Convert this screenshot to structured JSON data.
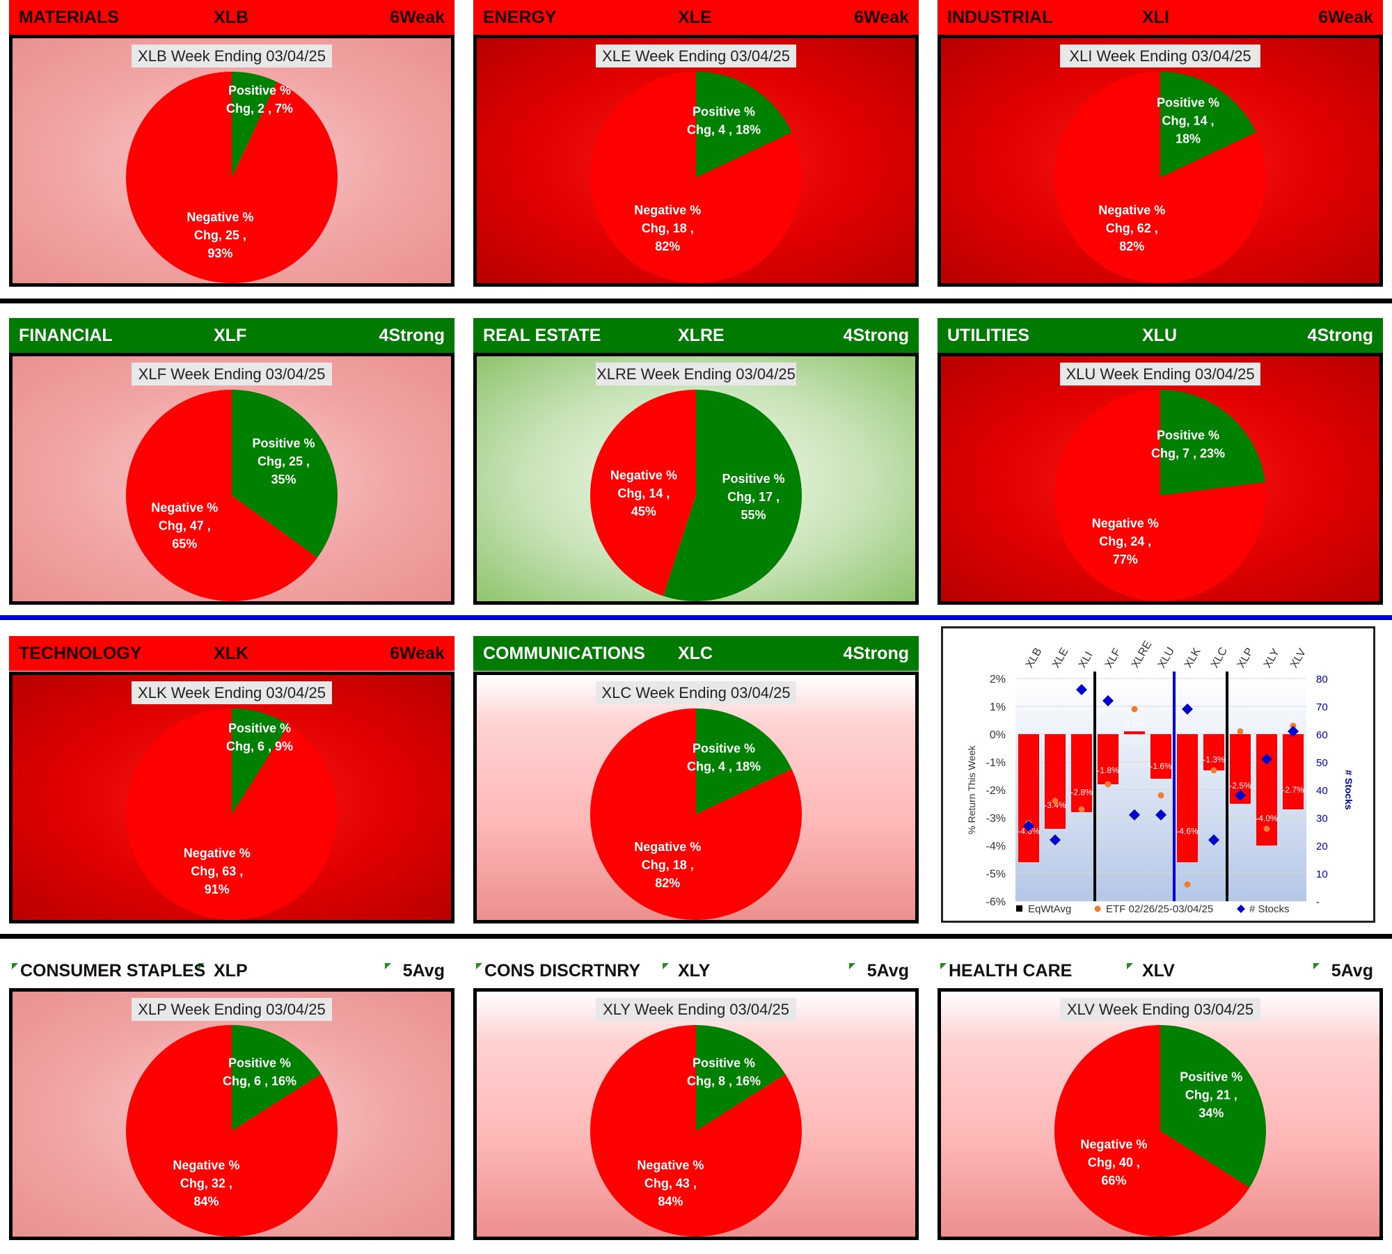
{
  "sectors": [
    {
      "name": "MATERIALS",
      "ticker": "XLB",
      "status": "6Weak",
      "header_style": "red",
      "bg": "lightred",
      "title": "XLB Week Ending 03/04/25",
      "pos_label": "Positive %",
      "pos_chg": "Chg,  2 , 7%",
      "neg_label": "Negative %",
      "neg_chg": "Chg,  25 ,",
      "neg_pct": "93%",
      "pos_pct": "",
      "pos_share": 0.07
    },
    {
      "name": "ENERGY",
      "ticker": "XLE",
      "status": "6Weak",
      "header_style": "red",
      "bg": "darkred",
      "title": "XLE Week Ending 03/04/25",
      "pos_label": "Positive %",
      "pos_chg": "Chg,  4 , 18%",
      "pos_pct": "",
      "neg_label": "Negative %",
      "neg_chg": "Chg,  18 ,",
      "neg_pct": "82%",
      "pos_share": 0.18
    },
    {
      "name": "INDUSTRIAL",
      "ticker": "XLI",
      "status": "6Weak",
      "header_style": "red",
      "bg": "darkred",
      "title": "XLI Week Ending 03/04/25",
      "pos_label": "Positive %",
      "pos_chg": "Chg,  14 ,",
      "pos_pct": "18%",
      "neg_label": "Negative %",
      "neg_chg": "Chg,  62 ,",
      "neg_pct": "82%",
      "pos_share": 0.18
    },
    {
      "name": "FINANCIAL",
      "ticker": "XLF",
      "status": "4Strong",
      "header_style": "green",
      "bg": "lightred",
      "title": "XLF Week Ending 03/04/25",
      "pos_label": "Positive %",
      "pos_chg": "Chg,  25 ,",
      "pos_pct": "35%",
      "neg_label": "Negative %",
      "neg_chg": "Chg,  47 ,",
      "neg_pct": "65%",
      "pos_share": 0.35
    },
    {
      "name": "REAL ESTATE",
      "ticker": "XLRE",
      "status": "4Strong",
      "header_style": "green",
      "bg": "green",
      "title": "XLRE Week Ending 03/04/25",
      "pos_label": "Positive %",
      "pos_chg": "Chg,  17 ,",
      "pos_pct": "55%",
      "neg_label": "Negative %",
      "neg_chg": "Chg,  14 ,",
      "neg_pct": "45%",
      "pos_share": 0.55
    },
    {
      "name": "UTILITIES",
      "ticker": "XLU",
      "status": "4Strong",
      "header_style": "green",
      "bg": "darkred",
      "title": "XLU Week Ending 03/04/25",
      "pos_label": "Positive %",
      "pos_chg": "Chg,  7 , 23%",
      "pos_pct": "",
      "neg_label": "Negative %",
      "neg_chg": "Chg,  24 ,",
      "neg_pct": "77%",
      "pos_share": 0.23
    },
    {
      "name": "TECHNOLOGY",
      "ticker": "XLK",
      "status": "6Weak",
      "header_style": "red",
      "bg": "darkred",
      "title": "XLK Week Ending 03/04/25",
      "pos_label": "Positive %",
      "pos_chg": "Chg,  6 , 9%",
      "pos_pct": "",
      "neg_label": "Negative %",
      "neg_chg": "Chg,  63 ,",
      "neg_pct": "91%",
      "pos_share": 0.09
    },
    {
      "name": "COMMUNICATIONS",
      "ticker": "XLC",
      "status": "4Strong",
      "header_style": "green",
      "bg": "pink",
      "title": "XLC Week Ending 03/04/25",
      "pos_label": "Positive %",
      "pos_chg": "Chg,  4 , 18%",
      "pos_pct": "",
      "neg_label": "Negative %",
      "neg_chg": "Chg,  18 ,",
      "neg_pct": "82%",
      "pos_share": 0.18
    },
    {
      "name": "CONSUMER STAPLES",
      "ticker": "XLP",
      "status": "5Avg",
      "header_style": "white",
      "bg": "lightred",
      "title": "XLP Week Ending 03/04/25",
      "pos_label": "Positive %",
      "pos_chg": "Chg,  6 , 16%",
      "pos_pct": "",
      "neg_label": "Negative %",
      "neg_chg": "Chg,  32 ,",
      "neg_pct": "84%",
      "pos_share": 0.16
    },
    {
      "name": "CONS DISCRTNRY",
      "ticker": "XLY",
      "status": "5Avg",
      "header_style": "white",
      "bg": "pink",
      "title": "XLY Week Ending 03/04/25",
      "pos_label": "Positive %",
      "pos_chg": "Chg,  8 , 16%",
      "pos_pct": "",
      "neg_label": "Negative %",
      "neg_chg": "Chg,  43 ,",
      "neg_pct": "84%",
      "pos_share": 0.16
    },
    {
      "name": "HEALTH CARE",
      "ticker": "XLV",
      "status": "5Avg",
      "header_style": "white",
      "bg": "pink",
      "title": "XLV Week Ending 03/04/25",
      "pos_label": "Positive %",
      "pos_chg": "Chg,  21 ,",
      "pos_pct": "34%",
      "neg_label": "Negative %",
      "neg_chg": "Chg,  40 ,",
      "neg_pct": "66%",
      "pos_share": 0.34
    }
  ],
  "colors": {
    "positive": "#008000",
    "negative": "#ff0000",
    "bar": "#ff0000",
    "etf": "#ed7d31",
    "stocks": "#0000cc"
  },
  "chart_data": [
    {
      "type": "pie",
      "title": "XLB Week Ending 03/04/25",
      "categories": [
        "Positive % Chg",
        "Negative % Chg"
      ],
      "values": [
        2,
        25
      ],
      "percent": [
        7,
        93
      ]
    },
    {
      "type": "pie",
      "title": "XLE Week Ending 03/04/25",
      "categories": [
        "Positive % Chg",
        "Negative % Chg"
      ],
      "values": [
        4,
        18
      ],
      "percent": [
        18,
        82
      ]
    },
    {
      "type": "pie",
      "title": "XLI Week Ending 03/04/25",
      "categories": [
        "Positive % Chg",
        "Negative % Chg"
      ],
      "values": [
        14,
        62
      ],
      "percent": [
        18,
        82
      ]
    },
    {
      "type": "pie",
      "title": "XLF Week Ending 03/04/25",
      "categories": [
        "Positive % Chg",
        "Negative % Chg"
      ],
      "values": [
        25,
        47
      ],
      "percent": [
        35,
        65
      ]
    },
    {
      "type": "pie",
      "title": "XLRE Week Ending 03/04/25",
      "categories": [
        "Positive % Chg",
        "Negative % Chg"
      ],
      "values": [
        17,
        14
      ],
      "percent": [
        55,
        45
      ]
    },
    {
      "type": "pie",
      "title": "XLU Week Ending 03/04/25",
      "categories": [
        "Positive % Chg",
        "Negative % Chg"
      ],
      "values": [
        7,
        24
      ],
      "percent": [
        23,
        77
      ]
    },
    {
      "type": "pie",
      "title": "XLK Week Ending 03/04/25",
      "categories": [
        "Positive % Chg",
        "Negative % Chg"
      ],
      "values": [
        6,
        63
      ],
      "percent": [
        9,
        91
      ]
    },
    {
      "type": "pie",
      "title": "XLC Week Ending 03/04/25",
      "categories": [
        "Positive % Chg",
        "Negative % Chg"
      ],
      "values": [
        4,
        18
      ],
      "percent": [
        18,
        82
      ]
    },
    {
      "type": "pie",
      "title": "XLP Week Ending 03/04/25",
      "categories": [
        "Positive % Chg",
        "Negative % Chg"
      ],
      "values": [
        6,
        32
      ],
      "percent": [
        16,
        84
      ]
    },
    {
      "type": "pie",
      "title": "XLY Week Ending 03/04/25",
      "categories": [
        "Positive % Chg",
        "Negative % Chg"
      ],
      "values": [
        8,
        43
      ],
      "percent": [
        16,
        84
      ]
    },
    {
      "type": "pie",
      "title": "XLV Week Ending 03/04/25",
      "categories": [
        "Positive % Chg",
        "Negative % Chg"
      ],
      "values": [
        21,
        40
      ],
      "percent": [
        34,
        66
      ]
    },
    {
      "type": "bar",
      "categories": [
        "XLB",
        "XLE",
        "XLI",
        "XLF",
        "XLRE",
        "XLU",
        "XLK",
        "XLC",
        "XLP",
        "XLY",
        "XLV"
      ],
      "series": [
        {
          "name": "EqWtAvg",
          "kind": "bar",
          "values": [
            -4.6,
            -3.4,
            -2.8,
            -1.8,
            0.1,
            -1.6,
            -4.6,
            -1.3,
            -2.5,
            -4.0,
            -2.7
          ],
          "labels": [
            "-4.6%",
            "-3.4%",
            "-2.8%",
            "-1.8%",
            "0.1%",
            "-1.6%",
            "-4.6%",
            "-1.3%",
            "-2.5%",
            "-4.0%",
            "-2.7%"
          ]
        },
        {
          "name": "ETF 02/26/25-03/04/25",
          "kind": "scatter",
          "values": [
            -3.2,
            -2.4,
            -2.7,
            -1.8,
            0.9,
            -2.2,
            -5.4,
            -1.3,
            0.1,
            -3.4,
            0.3
          ]
        },
        {
          "name": "# Stocks",
          "kind": "scatter",
          "axis": "right",
          "values": [
            27,
            22,
            76,
            72,
            31,
            31,
            69,
            22,
            38,
            51,
            61
          ]
        }
      ],
      "yticks": [
        "2%",
        "1%",
        "0%",
        "-1%",
        "-2%",
        "-3%",
        "-4%",
        "-5%",
        "-6%"
      ],
      "y2ticks": [
        "80",
        "70",
        "60",
        "50",
        "40",
        "30",
        "20",
        "10",
        "-"
      ],
      "ylim": [
        -6,
        2
      ],
      "y2lim": [
        0,
        80
      ],
      "ylabel": "% Return This Week",
      "y2label": "# Stocks",
      "legend": [
        "EqWtAvg",
        "ETF 02/26/25-03/04/25",
        "# Stocks"
      ]
    }
  ]
}
